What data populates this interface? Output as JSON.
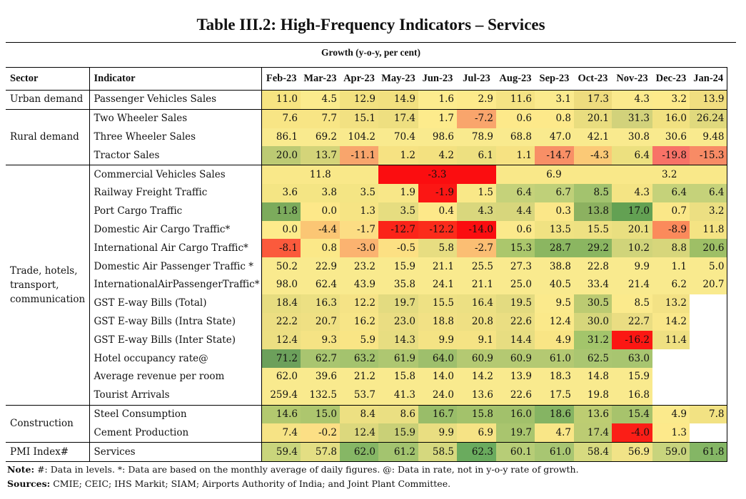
{
  "title": "Table III.2: High-Frequency Indicators – Services",
  "subtitle": "Growth (y-o-y, per cent)",
  "headers": {
    "sector": "Sector",
    "indicator": "Indicator",
    "months": [
      "Feb-23",
      "Mar-23",
      "Apr-23",
      "May-23",
      "Jun-23",
      "Jul-23",
      "Aug-23",
      "Sep-23",
      "Oct-23",
      "Nov-23",
      "Dec-23",
      "Jan-24"
    ]
  },
  "sectors": {
    "urban": "Urban demand",
    "rural": "Rural demand",
    "trade": "Trade, hotels, transport, communication",
    "construction": "Construction",
    "pmi": "PMI Index#"
  },
  "rows": [
    {
      "indicator": "Passenger Vehicles Sales",
      "values": [
        "11.0",
        "4.5",
        "12.9",
        "14.9",
        "1.6",
        "2.9",
        "11.6",
        "3.1",
        "17.3",
        "4.3",
        "3.2",
        "13.9"
      ],
      "colors": [
        "#f7e481",
        "#fbeb8d",
        "#f3e280",
        "#f2e07f",
        "#fdec8e",
        "#fdea8b",
        "#f5e384",
        "#fbea8d",
        "#eedc7e",
        "#fbea8d",
        "#fdea8b",
        "#f1de80"
      ]
    },
    {
      "indicator": "Two Wheeler Sales",
      "values": [
        "7.6",
        "7.7",
        "15.1",
        "17.4",
        "1.7",
        "-7.2",
        "0.6",
        "0.8",
        "20.1",
        "31.3",
        "16.0",
        "26.24"
      ],
      "colors": [
        "#f8e585",
        "#f8e585",
        "#f2e182",
        "#eedf80",
        "#fdeb8c",
        "#f9a56c",
        "#fde98a",
        "#fde98a",
        "#e9dd7f",
        "#d2d27b",
        "#f1e181",
        "#e0d97d"
      ]
    },
    {
      "indicator": "Three Wheeler Sales",
      "values": [
        "86.1",
        "69.2",
        "104.2",
        "70.4",
        "98.6",
        "78.9",
        "68.8",
        "47.0",
        "42.1",
        "30.8",
        "30.6",
        "9.48"
      ],
      "colors": [
        "#f9ea8e",
        "#f9ea8e",
        "#f9ea8e",
        "#f9ea8e",
        "#f9ea8e",
        "#f9ea8e",
        "#f9ea8e",
        "#f9ea8e",
        "#f9ea8e",
        "#f9ea8e",
        "#f9ea8e",
        "#f9ea8e"
      ]
    },
    {
      "indicator": "Tractor Sales",
      "values": [
        "20.0",
        "13.7",
        "-11.1",
        "1.2",
        "4.2",
        "6.1",
        "1.1",
        "-14.7",
        "-4.3",
        "6.4",
        "-19.8",
        "-15.3"
      ],
      "colors": [
        "#bcca73",
        "#d4d479",
        "#f8a56c",
        "#f6e282",
        "#f3e180",
        "#ede080",
        "#f6e282",
        "#f88f66",
        "#fbc976",
        "#ece07f",
        "#f87267",
        "#f88b65"
      ]
    },
    {
      "indicator": "Commercial Vehicles Sales",
      "merged": true,
      "groups": [
        {
          "text": "11.8",
          "span": 3,
          "color": "#f9e889"
        },
        {
          "text": "-3.3",
          "span": 3,
          "color": "#fb0d10"
        },
        {
          "text": "6.9",
          "span": 3,
          "color": "#f9e889"
        },
        {
          "text": "3.2",
          "span": 3,
          "color": "#f9e889"
        }
      ]
    },
    {
      "indicator": "Railway Freight Traffic",
      "values": [
        "3.6",
        "3.8",
        "3.5",
        "1.9",
        "-1.9",
        "1.5",
        "6.4",
        "6.7",
        "8.5",
        "4.3",
        "6.4",
        "6.4"
      ],
      "colors": [
        "#f4e584",
        "#f4e584",
        "#f4e584",
        "#f8e788",
        "#fb1614",
        "#f9e888",
        "#c5d27a",
        "#bfd079",
        "#a3c36e",
        "#f4e484",
        "#c5d27a",
        "#c5d27a"
      ]
    },
    {
      "indicator": "Port Cargo Traffic",
      "values": [
        "11.8",
        "0.0",
        "1.3",
        "3.5",
        "0.4",
        "4.3",
        "4.4",
        "0.3",
        "13.8",
        "17.0",
        "0.7",
        "3.2"
      ],
      "colors": [
        "#7cab5c",
        "#fde889",
        "#f6e484",
        "#e6dd80",
        "#fde889",
        "#d9d77d",
        "#d7d67c",
        "#fbe788",
        "#8cb160",
        "#63a153",
        "#fae788",
        "#ecdf82"
      ]
    },
    {
      "indicator": "Domestic Air Cargo Traffic*",
      "values": [
        "0.0",
        "-4.4",
        "-1.7",
        "-12.7",
        "-12.2",
        "-14.0",
        "0.6",
        "13.5",
        "15.5",
        "20.1",
        "-8.9",
        "11.8"
      ],
      "colors": [
        "#fdeb8b",
        "#fbc674",
        "#fcdd84",
        "#fb2419",
        "#fb2c1b",
        "#fb0d10",
        "#fbe98b",
        "#f0e282",
        "#eee182",
        "#e9df80",
        "#fb8a5b",
        "#f4e383"
      ]
    },
    {
      "indicator": "International Air Cargo Traffic*",
      "values": [
        "-8.1",
        "0.8",
        "-3.0",
        "-0.5",
        "5.8",
        "-2.7",
        "15.3",
        "28.7",
        "29.2",
        "10.2",
        "8.8",
        "20.6"
      ],
      "colors": [
        "#fb5a3c",
        "#fbe888",
        "#fbb370",
        "#fce083",
        "#e7dd81",
        "#fbbe73",
        "#abc76c",
        "#8bb661",
        "#8bb661",
        "#d0d47a",
        "#d7d67b",
        "#9ebf66"
      ]
    },
    {
      "indicator": "Domestic Air Passenger Traffic *",
      "values": [
        "50.2",
        "22.9",
        "23.2",
        "15.9",
        "21.1",
        "25.5",
        "27.3",
        "38.8",
        "22.8",
        "9.9",
        "1.1",
        "5.0"
      ],
      "colors": [
        "#f9ea8e",
        "#f9ea8e",
        "#f9ea8e",
        "#f9ea8e",
        "#f9ea8e",
        "#f9ea8e",
        "#f9ea8e",
        "#f9ea8e",
        "#f9ea8e",
        "#f9ea8e",
        "#f9ea8e",
        "#f9ea8e"
      ]
    },
    {
      "indicator": "InternationalAirPassengerTraffic*",
      "values": [
        "98.0",
        "62.4",
        "43.9",
        "35.8",
        "24.1",
        "21.1",
        "25.0",
        "40.5",
        "33.4",
        "21.4",
        "6.2",
        "20.7"
      ],
      "colors": [
        "#f9ea8e",
        "#f9ea8e",
        "#f9ea8e",
        "#f9ea8e",
        "#f9ea8e",
        "#f9ea8e",
        "#f9ea8e",
        "#f9ea8e",
        "#f9ea8e",
        "#f9ea8e",
        "#f9ea8e",
        "#f9ea8e"
      ]
    },
    {
      "indicator": "GST E-way Bills (Total)",
      "values": [
        "18.4",
        "16.3",
        "12.2",
        "19.7",
        "15.5",
        "16.4",
        "19.5",
        "9.5",
        "30.5",
        "8.5",
        "13.2",
        ""
      ],
      "colors": [
        "#e7dd80",
        "#ece083",
        "#f5e386",
        "#e3db80",
        "#eee184",
        "#ece083",
        "#e3db80",
        "#fbea8c",
        "#bccb72",
        "#fbea8c",
        "#f3e285",
        "#ffffff"
      ]
    },
    {
      "indicator": "GST E-way Bills (Intra State)",
      "values": [
        "22.2",
        "20.7",
        "16.2",
        "23.0",
        "18.8",
        "20.8",
        "22.6",
        "12.4",
        "30.0",
        "22.7",
        "14.2",
        ""
      ],
      "colors": [
        "#ecde82",
        "#efe083",
        "#f7e587",
        "#eadd82",
        "#f2e185",
        "#efe083",
        "#eade82",
        "#fbe98a",
        "#d6d67b",
        "#eadd82",
        "#f9e789",
        "#ffffff"
      ]
    },
    {
      "indicator": "GST E-way Bills (Inter State)",
      "values": [
        "12.4",
        "9.3",
        "5.9",
        "14.3",
        "9.9",
        "9.1",
        "14.4",
        "4.9",
        "31.2",
        "-16.2",
        "11.4",
        ""
      ],
      "colors": [
        "#ecdf82",
        "#f5e384",
        "#f9e585",
        "#e7dd81",
        "#f4e384",
        "#f5e384",
        "#e7dd81",
        "#f9e585",
        "#a3c56b",
        "#fb1713",
        "#efe082",
        "#ffffff"
      ]
    },
    {
      "indicator": "Hotel occupancy rate@",
      "values": [
        "71.2",
        "62.7",
        "63.2",
        "61.9",
        "64.0",
        "60.9",
        "60.9",
        "61.0",
        "62.5",
        "63.0",
        "",
        ""
      ],
      "colors": [
        "#6ca05b",
        "#a9c570",
        "#a4c36e",
        "#aec771",
        "#9ebf6c",
        "#b4c972",
        "#b4c972",
        "#b4c972",
        "#aac671",
        "#a8c570",
        "#ffffff",
        "#ffffff"
      ]
    },
    {
      "indicator": "Average revenue per room",
      "values": [
        "62.0",
        "39.6",
        "21.2",
        "15.8",
        "14.0",
        "14.2",
        "13.9",
        "18.3",
        "14.8",
        "15.9",
        "",
        ""
      ],
      "colors": [
        "#f9ea8e",
        "#f9ea8e",
        "#f9ea8e",
        "#f9ea8e",
        "#f9ea8e",
        "#f9ea8e",
        "#f9ea8e",
        "#f9ea8e",
        "#f9ea8e",
        "#f9ea8e",
        "#ffffff",
        "#ffffff"
      ]
    },
    {
      "indicator": "Tourist Arrivals",
      "values": [
        "259.4",
        "132.5",
        "53.7",
        "41.3",
        "24.0",
        "13.6",
        "22.6",
        "17.5",
        "19.8",
        "16.8",
        "",
        ""
      ],
      "colors": [
        "#f9ea8e",
        "#f9ea8e",
        "#f9ea8e",
        "#f9ea8e",
        "#f9ea8e",
        "#f9ea8e",
        "#f9ea8e",
        "#f9ea8e",
        "#f9ea8e",
        "#f9ea8e",
        "#ffffff",
        "#ffffff"
      ]
    },
    {
      "indicator": "Steel Consumption",
      "values": [
        "14.6",
        "15.0",
        "8.4",
        "8.6",
        "16.7",
        "15.8",
        "16.0",
        "18.6",
        "13.6",
        "15.4",
        "4.9",
        "7.8"
      ],
      "colors": [
        "#b3c96f",
        "#adc66e",
        "#ede082",
        "#eadf82",
        "#99bd69",
        "#a3c26b",
        "#a2c16b",
        "#85b463",
        "#bdcd72",
        "#a7c36c",
        "#fbea8c",
        "#f2e283"
      ]
    },
    {
      "indicator": "Cement Production",
      "values": [
        "7.4",
        "-0.2",
        "12.4",
        "15.9",
        "9.9",
        "6.9",
        "19.7",
        "4.7",
        "17.4",
        "-4.0",
        "1.3",
        ""
      ],
      "colors": [
        "#f6e385",
        "#fcdf85",
        "#dcd87d",
        "#c9d077",
        "#e9de81",
        "#f6e385",
        "#a9c56e",
        "#f9e687",
        "#bccc73",
        "#fb1e17",
        "#fde98b",
        "#ffffff"
      ]
    },
    {
      "indicator": "Services",
      "values": [
        "59.4",
        "57.8",
        "62.0",
        "61.2",
        "58.5",
        "62.3",
        "60.1",
        "61.0",
        "58.4",
        "56.9",
        "59.0",
        "61.8"
      ],
      "colors": [
        "#c9d57c",
        "#e3de83",
        "#86b765",
        "#a3c46f",
        "#d5d87e",
        "#6aab5e",
        "#b7cd77",
        "#a8c672",
        "#d7da80",
        "#f1e387",
        "#c8d47d",
        "#84b665"
      ]
    }
  ],
  "note": {
    "label": "Note:",
    "text": " #: Data in levels. *: Data are based on the monthly average of daily figures. @: Data in rate, not in y-o-y rate of growth."
  },
  "sources": {
    "label": "Sources:",
    "text": " CMIE; CEIC; IHS Markit; SIAM; Airports Authority of India; and Joint Plant Committee."
  }
}
